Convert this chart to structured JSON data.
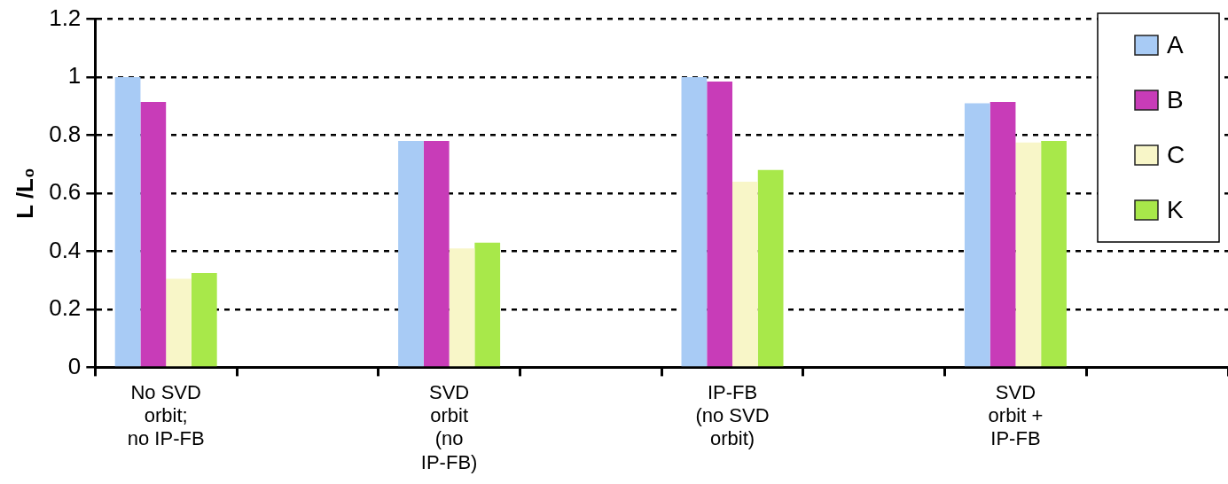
{
  "chart_data": {
    "type": "bar",
    "ylabel": "L /L₀",
    "categories": [
      "No SVD orbit; no IP-FB",
      null,
      "SVD orbit (no IP-FB)",
      null,
      "IP-FB (no SVD orbit)",
      null,
      "SVD orbit + IP-FB",
      null
    ],
    "series": [
      {
        "name": "A",
        "color": "#a8cbf5",
        "values": [
          1.0,
          null,
          0.78,
          null,
          1.0,
          null,
          0.91,
          null
        ]
      },
      {
        "name": "B",
        "color": "#c83cb8",
        "values": [
          0.915,
          null,
          0.78,
          null,
          0.985,
          null,
          0.915,
          null
        ]
      },
      {
        "name": "C",
        "color": "#f8f6c8",
        "values": [
          0.305,
          null,
          0.41,
          null,
          0.64,
          null,
          0.775,
          null
        ]
      },
      {
        "name": "K",
        "color": "#a8e84a",
        "values": [
          0.325,
          null,
          0.43,
          null,
          0.68,
          null,
          0.78,
          null
        ]
      }
    ],
    "ylim": [
      0,
      1.2
    ],
    "yticks": [
      0,
      0.2,
      0.4,
      0.6,
      0.8,
      1,
      1.2
    ],
    "grid": "y",
    "legend": "top right"
  }
}
